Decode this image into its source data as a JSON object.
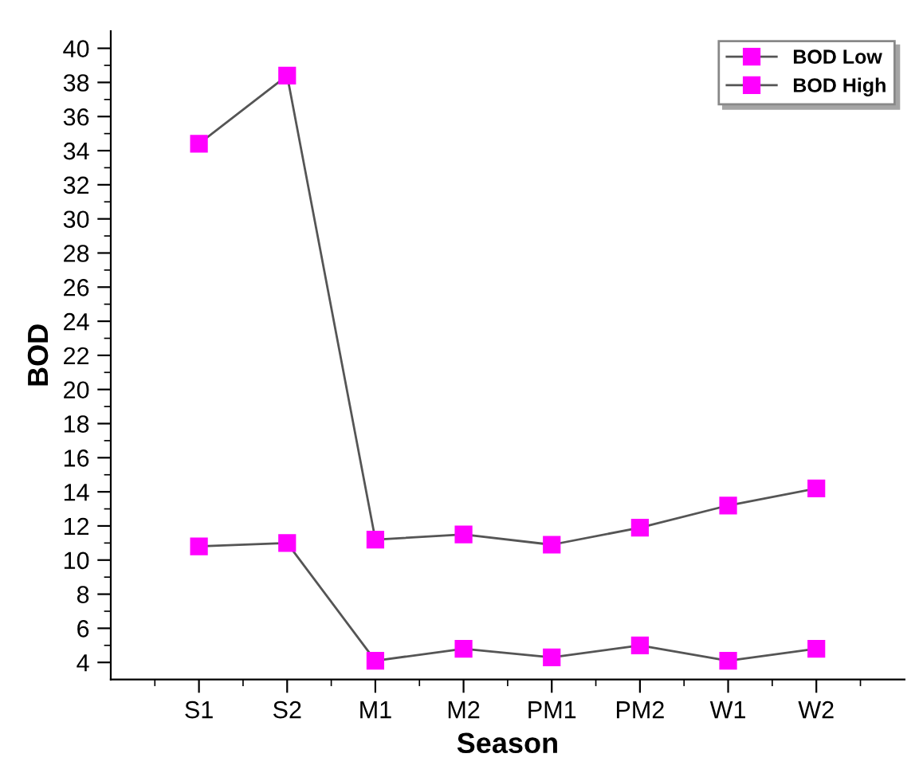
{
  "chart_data": {
    "type": "line",
    "xlabel": "Season",
    "ylabel": "BOD",
    "categories": [
      "S1",
      "S2",
      "M1",
      "M2",
      "PM1",
      "PM2",
      "W1",
      "W2"
    ],
    "series": [
      {
        "name": "BOD Low",
        "color": "#ff00ff",
        "values": [
          10.8,
          11.0,
          4.1,
          4.8,
          4.3,
          5.0,
          4.1,
          4.8
        ]
      },
      {
        "name": "BOD High",
        "color": "#ff00ff",
        "values": [
          34.4,
          38.4,
          11.2,
          11.5,
          10.9,
          11.9,
          13.2,
          14.2
        ]
      }
    ],
    "ylim": [
      3,
      41
    ],
    "yticks": [
      4,
      6,
      8,
      10,
      12,
      14,
      16,
      18,
      20,
      22,
      24,
      26,
      28,
      30,
      32,
      34,
      36,
      38,
      40
    ],
    "grid": false,
    "legend": "top right",
    "marker": "square",
    "line_style": "solid"
  }
}
